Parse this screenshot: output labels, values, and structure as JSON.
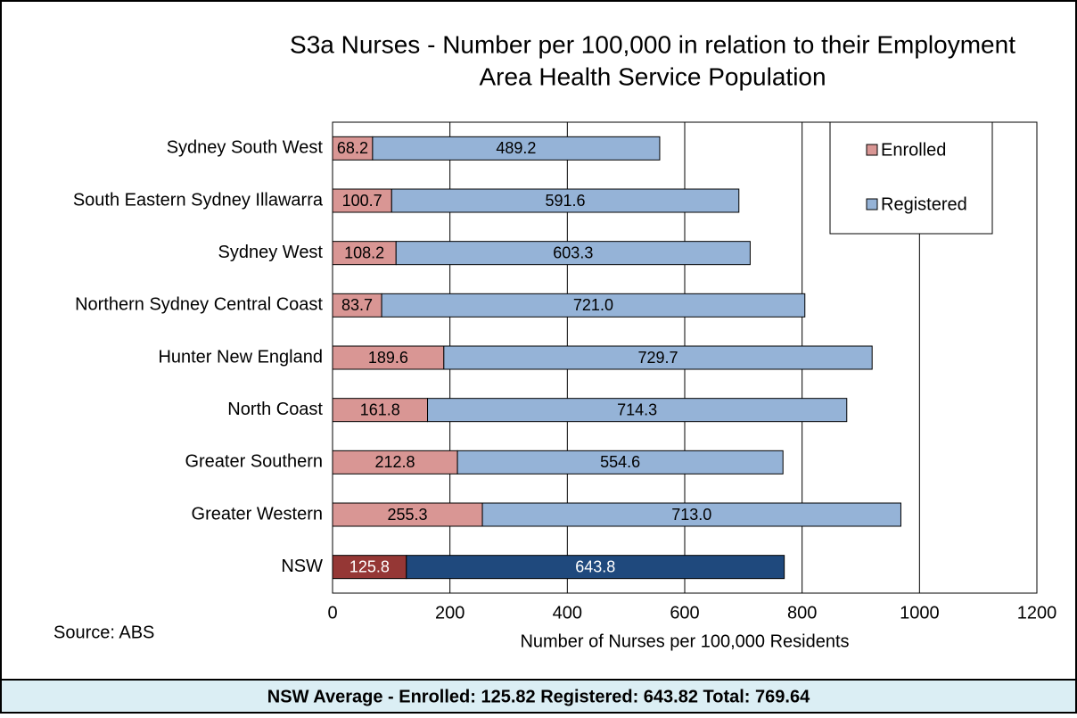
{
  "chart_data": {
    "type": "stacked-bar-horizontal",
    "title": [
      "S3a Nurses - Number per 100,000 in relation to their Employment",
      "Area Health Service Population"
    ],
    "x_label": "Number of Nurses per 100,000 Residents",
    "source": "Source: ABS",
    "footer": "NSW Average - Enrolled: 125.82  Registered: 643.82  Total: 769.64",
    "categories": [
      "Sydney South West",
      "South Eastern Sydney Illawarra",
      "Sydney West",
      "Northern Sydney Central Coast",
      "Hunter New England",
      "North Coast",
      "Greater Southern",
      "Greater Western",
      "NSW"
    ],
    "series": [
      {
        "name": "Enrolled",
        "color": "#d99694",
        "highlight_color": "#953735",
        "values": [
          68.2,
          100.7,
          108.2,
          83.7,
          189.6,
          161.8,
          212.8,
          255.3,
          125.8
        ],
        "value_labels": [
          "68.2",
          "100.7",
          "108.2",
          "83.7",
          "189.6",
          "161.8",
          "212.8",
          "255.3",
          "125.8"
        ]
      },
      {
        "name": "Registered",
        "color": "#95b3d7",
        "highlight_color": "#1f497d",
        "values": [
          489.2,
          591.6,
          603.3,
          721.0,
          729.7,
          714.3,
          554.6,
          713.0,
          643.8
        ],
        "value_labels": [
          "489.2",
          "591.6",
          "603.3",
          "721.0",
          "729.7",
          "714.3",
          "554.6",
          "713.0",
          "643.8"
        ]
      }
    ],
    "highlight_category": "NSW",
    "xlim": [
      0,
      1200
    ],
    "xticks": [
      0,
      200,
      400,
      600,
      800,
      1000,
      1200
    ],
    "grid": true,
    "legend": "upper right"
  }
}
